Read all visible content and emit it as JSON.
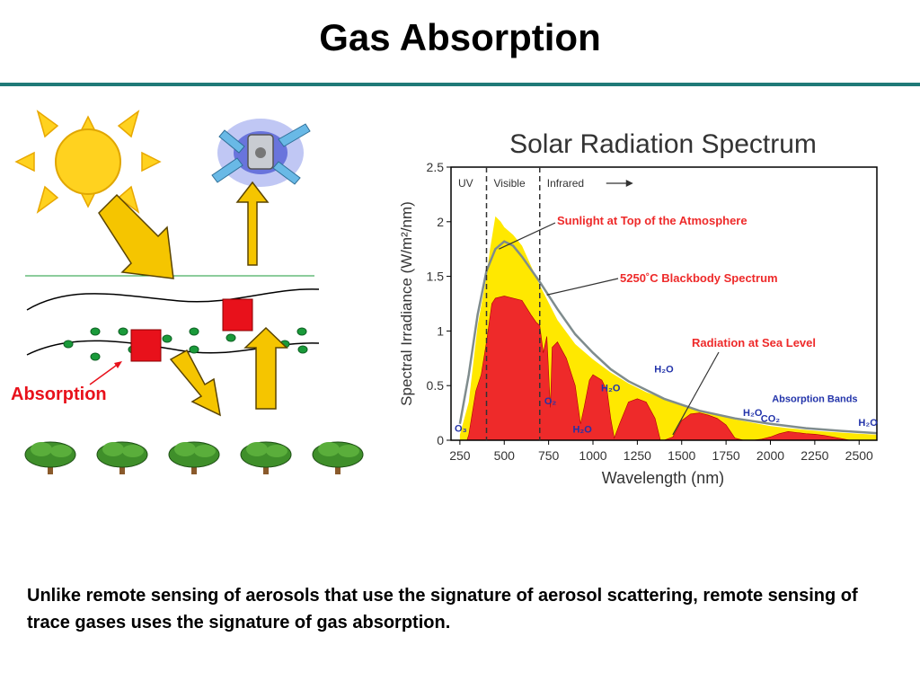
{
  "page": {
    "title": "Gas Absorption",
    "caption": "Unlike remote sensing of aerosols that use the signature of aerosol scattering, remote sensing of trace gases uses the signature of gas absorption."
  },
  "diagram": {
    "absorption_label": "Absorption",
    "icons": [
      "sun-icon",
      "satellite-icon",
      "tree-icon"
    ],
    "colors": {
      "arrow": "#f5c500",
      "absorber": "#e8111b",
      "molecule": "#1a9a3a",
      "label": "#e8111b"
    }
  },
  "chart_data": {
    "type": "area",
    "title": "Solar Radiation Spectrum",
    "xlabel": "Wavelength (nm)",
    "ylabel": "Spectral Irradiance (W/m²/nm)",
    "xlim": [
      200,
      2600
    ],
    "ylim": [
      0,
      2.5
    ],
    "xticks": [
      "250",
      "500",
      "750",
      "1000",
      "1250",
      "1500",
      "1750",
      "2000",
      "2250",
      "2500"
    ],
    "yticks": [
      "0",
      "0.5",
      "1",
      "1.5",
      "2",
      "2.5"
    ],
    "regions": [
      {
        "label": "UV",
        "from": 200,
        "to": 400
      },
      {
        "label": "Visible",
        "from": 400,
        "to": 700
      },
      {
        "label": "Infrared",
        "from": 700,
        "to": 2600
      }
    ],
    "series": [
      {
        "name": "Sunlight at Top of the Atmosphere",
        "color": "#ffe800",
        "x": [
          250,
          300,
          350,
          400,
          420,
          450,
          480,
          500,
          550,
          600,
          650,
          700,
          800,
          900,
          1000,
          1100,
          1200,
          1300,
          1400,
          1500,
          1600,
          1700,
          1800,
          1900,
          2000,
          2100,
          2200,
          2300,
          2400,
          2500,
          2600
        ],
        "y": [
          0.05,
          0.35,
          1.05,
          1.5,
          1.75,
          2.05,
          2.0,
          1.95,
          1.88,
          1.78,
          1.6,
          1.42,
          1.1,
          0.88,
          0.74,
          0.62,
          0.52,
          0.44,
          0.38,
          0.32,
          0.27,
          0.23,
          0.19,
          0.16,
          0.13,
          0.11,
          0.095,
          0.08,
          0.07,
          0.06,
          0.05
        ]
      },
      {
        "name": "5250˚C Blackbody Spectrum",
        "color": "#7f8c8d",
        "x": [
          250,
          300,
          350,
          400,
          450,
          500,
          550,
          600,
          700,
          800,
          900,
          1000,
          1100,
          1200,
          1400,
          1600,
          1800,
          2000,
          2200,
          2400,
          2600
        ],
        "y": [
          0.15,
          0.6,
          1.15,
          1.55,
          1.75,
          1.82,
          1.78,
          1.68,
          1.45,
          1.2,
          0.97,
          0.8,
          0.65,
          0.54,
          0.38,
          0.27,
          0.2,
          0.15,
          0.11,
          0.085,
          0.065
        ]
      },
      {
        "name": "Radiation at Sea Level",
        "color": "#ee2a2a",
        "x": [
          250,
          290,
          300,
          340,
          370,
          400,
          430,
          450,
          500,
          550,
          600,
          650,
          680,
          700,
          720,
          740,
          760,
          770,
          800,
          850,
          900,
          930,
          950,
          980,
          1000,
          1050,
          1080,
          1100,
          1120,
          1150,
          1200,
          1250,
          1300,
          1350,
          1380,
          1400,
          1450,
          1500,
          1550,
          1600,
          1650,
          1700,
          1750,
          1800,
          1850,
          1900,
          1950,
          2000,
          2050,
          2100,
          2150,
          2200,
          2250,
          2300,
          2350,
          2400,
          2450,
          2500,
          2550,
          2600
        ],
        "y": [
          0,
          0,
          0.05,
          0.45,
          0.6,
          0.9,
          1.25,
          1.3,
          1.32,
          1.3,
          1.28,
          1.15,
          1.08,
          1.05,
          0.8,
          0.95,
          0.3,
          0.85,
          0.9,
          0.75,
          0.5,
          0.15,
          0.3,
          0.55,
          0.6,
          0.55,
          0.45,
          0.2,
          0.02,
          0.15,
          0.35,
          0.38,
          0.35,
          0.2,
          0.0,
          0.0,
          0.03,
          0.18,
          0.24,
          0.25,
          0.23,
          0.2,
          0.14,
          0.02,
          0.0,
          0.0,
          0.01,
          0.03,
          0.06,
          0.08,
          0.07,
          0.06,
          0.055,
          0.045,
          0.03,
          0.015,
          0.0,
          0.0,
          0.0,
          0.0
        ]
      }
    ],
    "annotations": [
      {
        "text": "Sunlight at Top of the Atmosphere",
        "color": "#ee2a2a"
      },
      {
        "text": "5250˚C Blackbody Spectrum",
        "color": "#ee2a2a"
      },
      {
        "text": "Radiation at Sea Level",
        "color": "#ee2a2a"
      }
    ],
    "absorption_bands": [
      {
        "label": "O₃",
        "wavelength": 255
      },
      {
        "label": "O₂",
        "wavelength": 760
      },
      {
        "label": "H₂O",
        "wavelength": 940
      },
      {
        "label": "H₂O",
        "wavelength": 1100
      },
      {
        "label": "H₂O",
        "wavelength": 1400
      },
      {
        "label": "H₂O",
        "wavelength": 1900
      },
      {
        "label": "CO₂",
        "wavelength": 2000
      },
      {
        "label": "H₂O",
        "wavelength": 2550
      }
    ],
    "absorption_bands_label": "Absorption Bands",
    "grid": false,
    "legend": "none"
  }
}
